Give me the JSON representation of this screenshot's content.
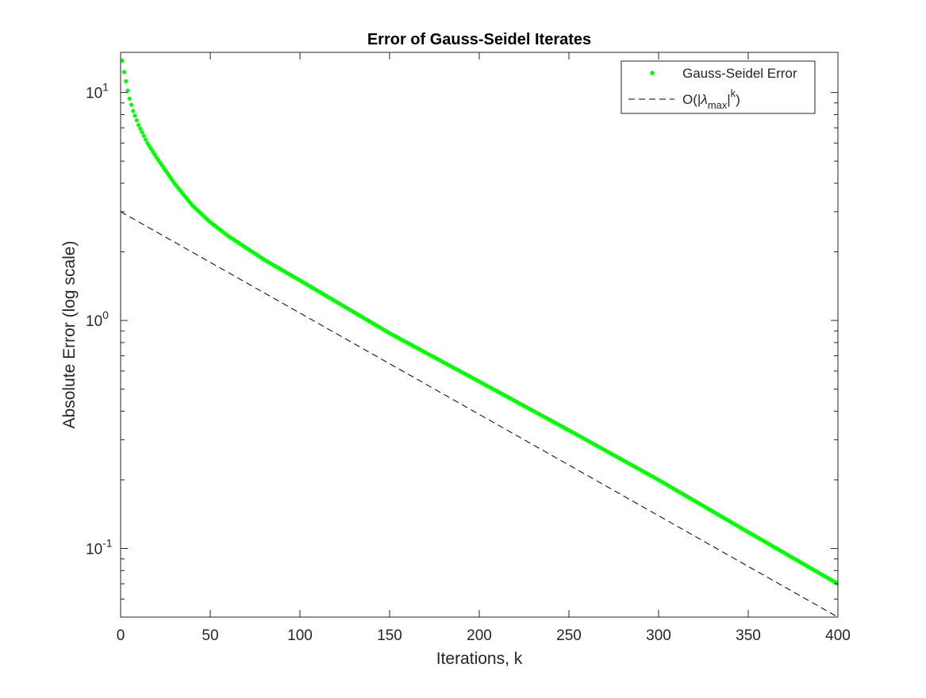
{
  "chart_data": {
    "type": "scatter",
    "title": "Error of Gauss-Seidel Iterates",
    "xlabel": "Iterations, k",
    "ylabel": "Absolute Error (log scale)",
    "xlim": [
      0,
      400
    ],
    "ylim": [
      0.05,
      15
    ],
    "yscale": "log",
    "grid": false,
    "legend_position": "top-right",
    "x_ticks": [
      0,
      50,
      100,
      150,
      200,
      250,
      300,
      350,
      400
    ],
    "y_ticks": [
      {
        "value": 0.1,
        "base": "10",
        "exp": "-1"
      },
      {
        "value": 1,
        "base": "10",
        "exp": "0"
      },
      {
        "value": 10,
        "base": "10",
        "exp": "1"
      }
    ],
    "series": [
      {
        "name": "Gauss-Seidel Error",
        "style": "dots",
        "color": "#00ff00",
        "x_start": 1,
        "x_end": 400,
        "x_step": 1,
        "anchors": [
          {
            "x": 1,
            "y": 13.8
          },
          {
            "x": 2,
            "y": 12.3
          },
          {
            "x": 3,
            "y": 11.2
          },
          {
            "x": 4,
            "y": 10.2
          },
          {
            "x": 5,
            "y": 9.4
          },
          {
            "x": 7,
            "y": 8.3
          },
          {
            "x": 10,
            "y": 7.2
          },
          {
            "x": 15,
            "y": 6.0
          },
          {
            "x": 20,
            "y": 5.2
          },
          {
            "x": 30,
            "y": 4.0
          },
          {
            "x": 40,
            "y": 3.2
          },
          {
            "x": 50,
            "y": 2.7
          },
          {
            "x": 60,
            "y": 2.35
          },
          {
            "x": 80,
            "y": 1.85
          },
          {
            "x": 100,
            "y": 1.5
          },
          {
            "x": 150,
            "y": 0.88
          },
          {
            "x": 200,
            "y": 0.54
          },
          {
            "x": 250,
            "y": 0.33
          },
          {
            "x": 300,
            "y": 0.2
          },
          {
            "x": 350,
            "y": 0.118
          },
          {
            "x": 400,
            "y": 0.07
          }
        ]
      },
      {
        "name_parts": {
          "prefix": "O(|",
          "symbol": "λ",
          "subscript": "max",
          "suffix": "|",
          "superscript": "k",
          "close": ")"
        },
        "style": "dashed",
        "color": "#000000",
        "x": [
          0,
          400
        ],
        "y": [
          3.0,
          0.05
        ]
      }
    ]
  }
}
